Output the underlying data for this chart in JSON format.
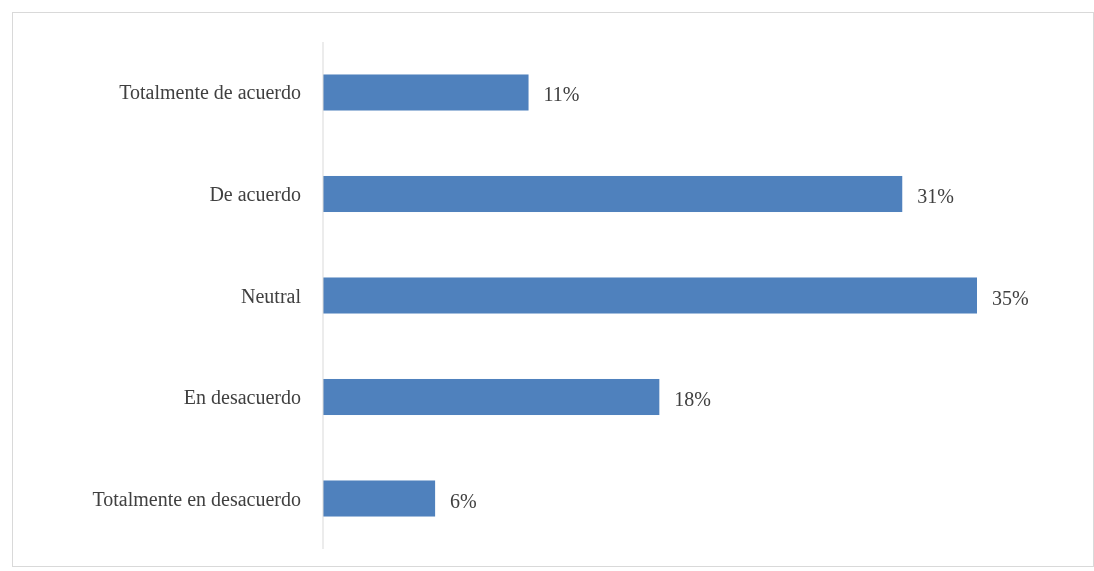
{
  "chart_data": {
    "type": "bar",
    "orientation": "horizontal",
    "categories": [
      "Totalmente de acuerdo",
      "De acuerdo",
      "Neutral",
      "En desacuerdo",
      "Totalmente en desacuerdo"
    ],
    "values": [
      11,
      31,
      35,
      18,
      6
    ],
    "value_labels": [
      "11%",
      "31%",
      "35%",
      "18%",
      "6%"
    ],
    "color": "#4f81bd"
  }
}
